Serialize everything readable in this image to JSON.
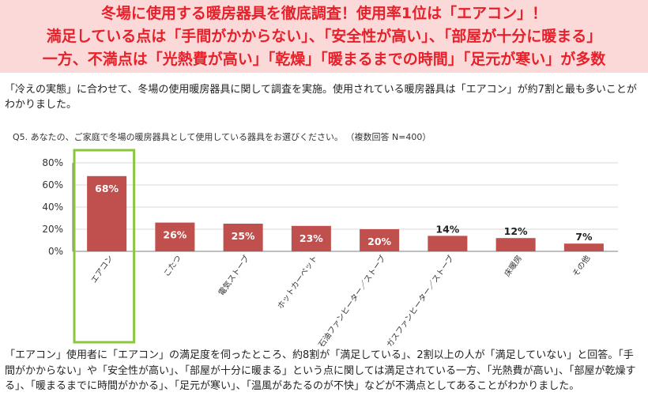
{
  "headline": {
    "line1": "冬場に使用する暖房器具を徹底調査！使用率1位は「エアコン」！",
    "line2": "満足している点は「手間がかからない」、「安全性が高い」、「部屋が十分に暖まる」",
    "line3": "一方、不満点は「光熱費が高い」「乾燥」「暖まるまでの時間」「足元が寒い」が多数"
  },
  "intro": "「冷えの実態」に合わせて、冬場の使用暖房器具に関して調査を実施。使用されている暖房器具は「エアコン」が約7割と最も多いことがわかりました。",
  "question": "Q5.  あなたの、ご家庭で冬場の暖房器具として使用している器具をお選びください。  （複数回答 N=400）",
  "summary": "「エアコン」使用者に「エアコン」の満足度を伺ったところ、約8割が「満足している」、2割以上の人が「満足していない」と回答。「手間がかからない」や「安全性が高い」、「部屋が十分に暖まる」という点に関しては満足されている一方、「光熱費が高い」、「部屋が乾燥する」、「暖まるまでに時間がかかる」、「足元が寒い」、「温風があたるのが不快」などが不満点としてあることがわかりました。",
  "colors": {
    "bar": "#c0504d",
    "highlight": "#8cc63f",
    "headline_text": "#e8202a",
    "headline_bg": "#fbd9d9"
  },
  "chart_data": {
    "type": "bar",
    "categories": [
      "エアコン",
      "こたつ",
      "電気ストーブ",
      "ホットカーペット",
      "石油ファンヒーター／ストーブ",
      "ガスファンヒーター／ストーブ",
      "床暖房",
      "その他"
    ],
    "values": [
      68,
      26,
      25,
      23,
      20,
      14,
      12,
      7
    ],
    "data_labels": [
      "68%",
      "26%",
      "25%",
      "23%",
      "20%",
      "14%",
      "12%",
      "7%"
    ],
    "yticks": [
      "0%",
      "20%",
      "40%",
      "60%",
      "80%"
    ],
    "ylim": [
      0,
      80
    ],
    "grid": true,
    "highlight_category": "エアコン"
  }
}
